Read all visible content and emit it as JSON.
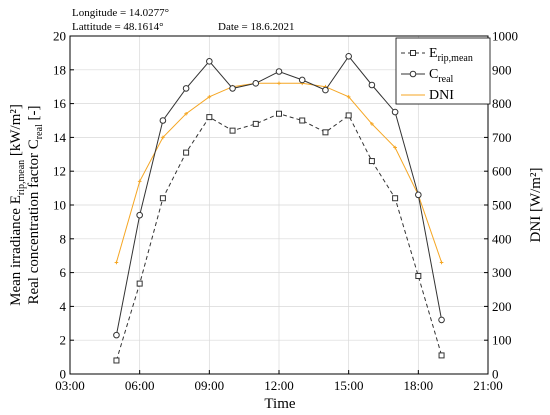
{
  "header": {
    "longitude": "Longitude = 14.0277°",
    "latitude": "Lattitude = 48.1614°",
    "date": "Date = 18.6.2021"
  },
  "chart_data": {
    "type": "line",
    "xlabel": "Time",
    "ylabel_left_line1_main": "Mean irradiance E",
    "ylabel_left_line1_sub": "rip,mean",
    "ylabel_left_line1_unit": " [kW/m²]",
    "ylabel_left_line2_main": "Real concentration factor C",
    "ylabel_left_line2_sub": "real",
    "ylabel_left_line2_unit": " [-]",
    "ylabel_right": "DNI [W/m²]",
    "xlim": [
      3,
      21
    ],
    "ylim_left": [
      0,
      20
    ],
    "ylim_right": [
      0,
      1000
    ],
    "x_ticks": [
      {
        "v": 3,
        "label": "03:00"
      },
      {
        "v": 6,
        "label": "06:00"
      },
      {
        "v": 9,
        "label": "09:00"
      },
      {
        "v": 12,
        "label": "12:00"
      },
      {
        "v": 15,
        "label": "15:00"
      },
      {
        "v": 18,
        "label": "18:00"
      },
      {
        "v": 21,
        "label": "21:00"
      }
    ],
    "y_left_ticks": [
      0,
      2,
      4,
      6,
      8,
      10,
      12,
      14,
      16,
      18,
      20
    ],
    "y_right_ticks": [
      0,
      100,
      200,
      300,
      400,
      500,
      600,
      700,
      800,
      900,
      1000
    ],
    "grid": true,
    "legend_position": "top-right",
    "series": [
      {
        "name_main": "E",
        "name_sub": "rip,mean",
        "axis": "left",
        "color": "#333333",
        "dash": true,
        "marker": "square",
        "x": [
          5,
          6,
          7,
          8,
          9,
          10,
          11,
          12,
          13,
          14,
          15,
          16,
          17,
          18,
          19
        ],
        "y": [
          0.8,
          5.35,
          10.4,
          13.1,
          15.2,
          14.4,
          14.8,
          15.4,
          15.0,
          14.3,
          15.3,
          12.6,
          10.4,
          5.8,
          1.1
        ]
      },
      {
        "name_main": "C",
        "name_sub": "real",
        "axis": "left",
        "color": "#333333",
        "dash": false,
        "marker": "circle",
        "x": [
          5,
          6,
          7,
          8,
          9,
          10,
          11,
          12,
          13,
          14,
          15,
          16,
          17,
          18,
          19
        ],
        "y": [
          2.3,
          9.4,
          15.0,
          16.9,
          18.5,
          16.9,
          17.2,
          17.9,
          17.4,
          16.8,
          18.8,
          17.1,
          15.5,
          10.6,
          3.2
        ]
      },
      {
        "name_main": "DNI",
        "name_sub": "",
        "axis": "right",
        "color": "#f5a623",
        "dash": false,
        "marker": "cross",
        "x": [
          5,
          6,
          7,
          8,
          9,
          10,
          11,
          12,
          13,
          14,
          15,
          16,
          17,
          18,
          19
        ],
        "y": [
          330,
          570,
          700,
          770,
          820,
          850,
          860,
          860,
          860,
          850,
          820,
          740,
          670,
          530,
          330
        ]
      }
    ]
  }
}
